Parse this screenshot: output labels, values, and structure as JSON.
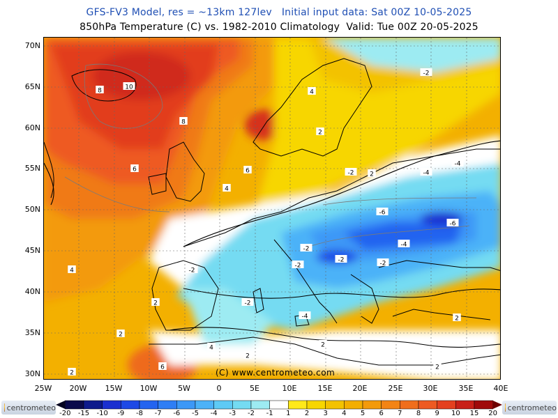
{
  "header": {
    "line1": "GFS-FV3 Model, res = ~13km 127lev   Initial input data: Sat 00Z 10-05-2025",
    "line2": "850hPa Temperature (C) vs. 1982-2010 Climatology  Valid: Tue 00Z 20-05-2025"
  },
  "axes": {
    "lat_labels": [
      "70N",
      "65N",
      "60N",
      "55N",
      "50N",
      "45N",
      "40N",
      "35N",
      "30N"
    ],
    "lon_labels": [
      "25W",
      "20W",
      "15W",
      "10W",
      "5W",
      "0",
      "5E",
      "10E",
      "15E",
      "20E",
      "25E",
      "30E",
      "35E",
      "40E"
    ]
  },
  "contour_labels": [
    {
      "text": "8"
    },
    {
      "text": "10"
    },
    {
      "text": "8"
    },
    {
      "text": "6"
    },
    {
      "text": "6"
    },
    {
      "text": "4"
    },
    {
      "text": "4"
    },
    {
      "text": "2"
    },
    {
      "text": "2"
    },
    {
      "text": "4"
    },
    {
      "text": "2"
    },
    {
      "text": "4"
    },
    {
      "text": "6"
    },
    {
      "text": "2"
    },
    {
      "text": "2"
    },
    {
      "text": "-2"
    },
    {
      "text": "-2"
    },
    {
      "text": "-4"
    },
    {
      "text": "-2"
    },
    {
      "text": "-4"
    },
    {
      "text": "-6"
    },
    {
      "text": "-6"
    },
    {
      "text": "-4"
    },
    {
      "text": "-2"
    },
    {
      "text": "-2"
    },
    {
      "text": "-4"
    },
    {
      "text": "-2"
    },
    {
      "text": "-2"
    },
    {
      "text": "-2"
    },
    {
      "text": "2"
    },
    {
      "text": "2"
    },
    {
      "text": "2"
    },
    {
      "text": "2"
    }
  ],
  "credit": "(C) www.centrometeo.com",
  "logo_text": "centrometeo",
  "colorbar": {
    "labels": [
      "-20",
      "-15",
      "-10",
      "-9",
      "-8",
      "-7",
      "-6",
      "-5",
      "-4",
      "-3",
      "-2",
      "-1",
      "1",
      "2",
      "3",
      "4",
      "5",
      "6",
      "7",
      "8",
      "9",
      "10",
      "15",
      "20"
    ],
    "colors": [
      "#0a0a4a",
      "#0d1a8c",
      "#1a2fd0",
      "#1d49e6",
      "#2464f0",
      "#2f7ef5",
      "#3c98f7",
      "#4cb2f8",
      "#5ecaf5",
      "#74dbf2",
      "#9debf2",
      "#ffffff",
      "#ffe91a",
      "#f7d600",
      "#f3c200",
      "#f3ae00",
      "#f39a0a",
      "#f38414",
      "#f06e1c",
      "#ee5a22",
      "#e4401f",
      "#c82018",
      "#a00a0a"
    ]
  }
}
